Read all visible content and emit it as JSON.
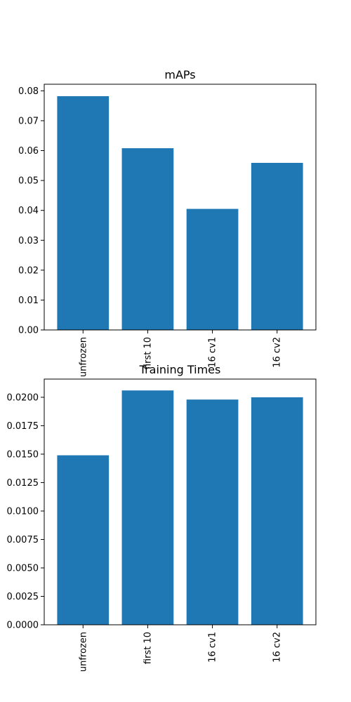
{
  "colors": {
    "bar": "#1f77b4",
    "background": "#ffffff",
    "axis": "#000000"
  },
  "chart_data": [
    {
      "type": "bar",
      "title": "mAPs",
      "xlabel": "",
      "ylabel": "",
      "categories": [
        "unfrozen",
        "first 10",
        "16 cv1",
        "16 cv2"
      ],
      "values": [
        0.0782,
        0.0608,
        0.0405,
        0.0559
      ],
      "ylim": [
        0,
        0.0822
      ],
      "yticks": [
        "0.00",
        "0.01",
        "0.02",
        "0.03",
        "0.04",
        "0.05",
        "0.06",
        "0.07",
        "0.08"
      ],
      "grid": false,
      "legend": "none"
    },
    {
      "type": "bar",
      "title": "Training Times",
      "xlabel": "",
      "ylabel": "",
      "categories": [
        "unfrozen",
        "first 10",
        "16 cv1",
        "16 cv2"
      ],
      "values": [
        0.0149,
        0.0206,
        0.0198,
        0.02
      ],
      "ylim": [
        0,
        0.0216
      ],
      "yticks": [
        "0.0000",
        "0.0025",
        "0.0050",
        "0.0075",
        "0.0100",
        "0.0125",
        "0.0150",
        "0.0175",
        "0.0200"
      ],
      "grid": false,
      "legend": "none"
    }
  ]
}
